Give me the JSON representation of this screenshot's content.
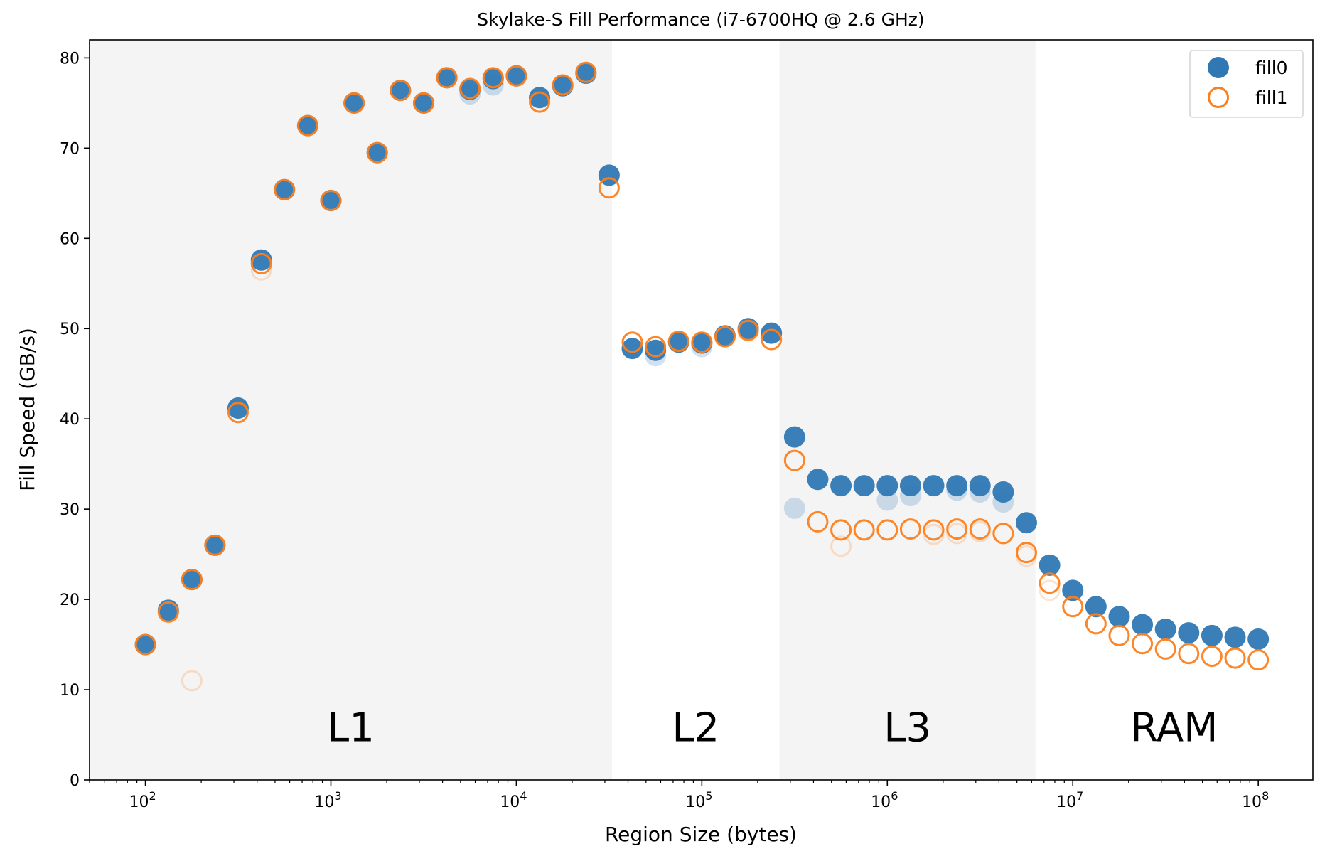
{
  "chart_data": {
    "type": "scatter",
    "title": "Skylake-S Fill Performance (i7-6700HQ @ 2.6 GHz)",
    "xlabel": "Region Size (bytes)",
    "ylabel": "Fill Speed (GB/s)",
    "xscale": "log",
    "xlim": [
      50,
      197000000
    ],
    "ylim": [
      0,
      82
    ],
    "x_ticks": [
      {
        "value": 100,
        "base": "10",
        "exp": "2"
      },
      {
        "value": 1000,
        "base": "10",
        "exp": "3"
      },
      {
        "value": 10000,
        "base": "10",
        "exp": "4"
      },
      {
        "value": 100000,
        "base": "10",
        "exp": "5"
      },
      {
        "value": 1000000,
        "base": "10",
        "exp": "6"
      },
      {
        "value": 10000000,
        "base": "10",
        "exp": "7"
      },
      {
        "value": 100000000,
        "base": "10",
        "exp": "8"
      }
    ],
    "y_ticks": [
      "0",
      "10",
      "20",
      "30",
      "40",
      "50",
      "60",
      "70",
      "80"
    ],
    "grid": false,
    "legend": "top-right",
    "regions": [
      {
        "label": "L1",
        "from": 50,
        "to": 32768,
        "shaded": true
      },
      {
        "label": "L2",
        "from": 32768,
        "to": 262144,
        "shaded": false
      },
      {
        "label": "L3",
        "from": 262144,
        "to": 6291456,
        "shaded": true
      },
      {
        "label": "RAM",
        "from": 6291456,
        "to": 197000000,
        "shaded": false
      }
    ],
    "region_label_y": 4.3,
    "colors": {
      "fill0": "#2f78b4",
      "fill1": "#fd7f1c",
      "shade": "#f4f4f4"
    },
    "x": [
      100,
      133,
      178,
      237,
      316,
      422,
      562,
      750,
      1000,
      1334,
      1778,
      2371,
      3162,
      4217,
      5623,
      7499,
      10000,
      13335,
      17783,
      23714,
      31623,
      42170,
      56234,
      74989,
      100000,
      133352,
      177828,
      237137,
      316228,
      421697,
      562341,
      749894,
      1000000,
      1333521,
      1778279,
      2371374,
      3162278,
      4216965,
      5623413,
      7498942,
      10000000,
      13335214,
      17782794,
      23713737,
      31622777,
      42169650,
      56234133,
      74989421,
      100000000
    ],
    "series": [
      {
        "name": "fill0",
        "marker": "filled-circle",
        "values": [
          15.0,
          18.8,
          22.2,
          26.0,
          41.2,
          57.6,
          65.4,
          72.5,
          64.2,
          75.0,
          69.5,
          76.4,
          75.0,
          77.8,
          76.5,
          77.7,
          78.0,
          75.6,
          76.9,
          78.3,
          67.0,
          47.8,
          47.6,
          48.5,
          48.4,
          49.2,
          50.0,
          49.5,
          38.0,
          33.3,
          32.6,
          32.6,
          32.6,
          32.6,
          32.6,
          32.6,
          32.6,
          31.9,
          28.5,
          23.8,
          21.0,
          19.2,
          18.1,
          17.2,
          16.7,
          16.3,
          16.0,
          15.8,
          15.6
        ]
      },
      {
        "name": "fill1",
        "marker": "open-circle",
        "values": [
          15.0,
          18.6,
          22.2,
          26.0,
          40.7,
          57.2,
          65.4,
          72.5,
          64.2,
          75.0,
          69.5,
          76.4,
          75.0,
          77.8,
          76.6,
          77.8,
          78.0,
          75.1,
          77.0,
          78.4,
          65.6,
          48.5,
          48.0,
          48.6,
          48.5,
          49.1,
          49.8,
          48.8,
          35.4,
          28.6,
          27.7,
          27.7,
          27.7,
          27.8,
          27.7,
          27.8,
          27.8,
          27.3,
          25.2,
          21.8,
          19.2,
          17.3,
          16.0,
          15.1,
          14.5,
          14.0,
          13.7,
          13.5,
          13.3
        ]
      }
    ],
    "faint_points": [
      {
        "series": "fill1",
        "x": 178,
        "y": 11.0
      },
      {
        "series": "fill1",
        "x": 422,
        "y": 56.5
      },
      {
        "series": "fill0",
        "x": 5623,
        "y": 76.0
      },
      {
        "series": "fill0",
        "x": 7499,
        "y": 77.0
      },
      {
        "series": "fill0",
        "x": 56234,
        "y": 47.0
      },
      {
        "series": "fill0",
        "x": 100000,
        "y": 48.0
      },
      {
        "series": "fill0",
        "x": 316228,
        "y": 30.1
      },
      {
        "series": "fill1",
        "x": 562341,
        "y": 25.9
      },
      {
        "series": "fill0",
        "x": 1000000,
        "y": 31.0
      },
      {
        "series": "fill0",
        "x": 1333521,
        "y": 31.5
      },
      {
        "series": "fill0",
        "x": 2371374,
        "y": 32.1
      },
      {
        "series": "fill0",
        "x": 3162278,
        "y": 31.9
      },
      {
        "series": "fill0",
        "x": 4216965,
        "y": 30.8
      },
      {
        "series": "fill1",
        "x": 1778279,
        "y": 27.2
      },
      {
        "series": "fill1",
        "x": 2371374,
        "y": 27.3
      },
      {
        "series": "fill1",
        "x": 3162278,
        "y": 27.5
      },
      {
        "series": "fill1",
        "x": 5623413,
        "y": 24.8
      },
      {
        "series": "fill1",
        "x": 7498942,
        "y": 21.0
      }
    ]
  }
}
